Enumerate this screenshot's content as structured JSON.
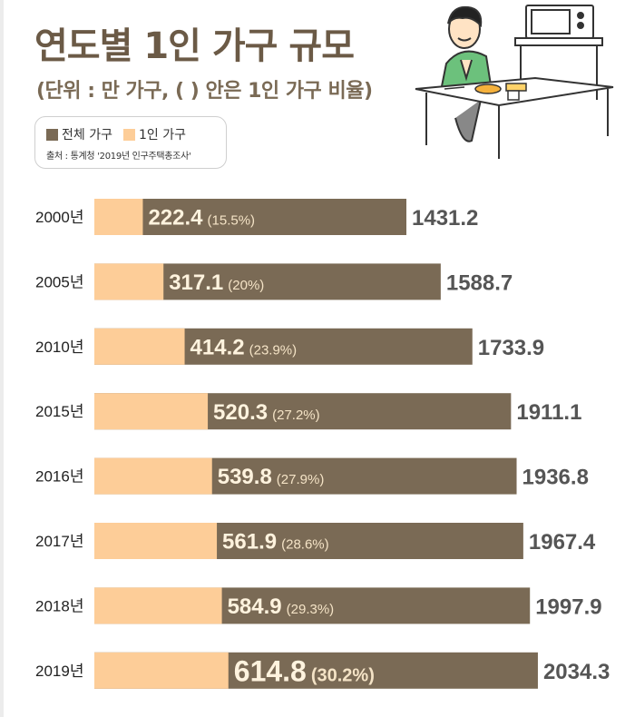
{
  "header": {
    "title": "연도별 1인 가구 규모",
    "subtitle": "(단위 : 만 가구, ( ) 안은 1인 가구 비율)"
  },
  "legend": {
    "total_label": "전체 가구",
    "single_label": "1인 가구",
    "source": "출처 : 통계청 '2019년 인구주택총조사'"
  },
  "colors": {
    "total": "#7a6a55",
    "single": "#fdcd98",
    "title": "#6b5a46"
  },
  "chart_data": {
    "type": "bar",
    "orientation": "horizontal",
    "stacked": "overlay",
    "categories": [
      "2000년",
      "2005년",
      "2010년",
      "2015년",
      "2016년",
      "2017년",
      "2018년",
      "2019년"
    ],
    "series": [
      {
        "name": "전체 가구",
        "values": [
          1431.2,
          1588.7,
          1733.9,
          1911.1,
          1936.8,
          1967.4,
          1997.9,
          2034.3
        ]
      },
      {
        "name": "1인 가구",
        "values": [
          222.4,
          317.1,
          414.2,
          520.3,
          539.8,
          561.9,
          584.9,
          614.8
        ]
      }
    ],
    "single_pct_labels": [
      "(15.5%)",
      "(20%)",
      "(23.9%)",
      "(27.2%)",
      "(27.9%)",
      "(28.6%)",
      "(29.3%)",
      "(30.2%)"
    ],
    "total_labels": [
      "1431.2",
      "1588.7",
      "1733.9",
      "1911.1",
      "1936.8",
      "1967.4",
      "1997.9",
      "2034.3"
    ],
    "single_labels": [
      "222.4",
      "317.1",
      "414.2",
      "520.3",
      "539.8",
      "561.9",
      "584.9",
      "614.8"
    ],
    "legend": "top-left",
    "grid": false
  }
}
